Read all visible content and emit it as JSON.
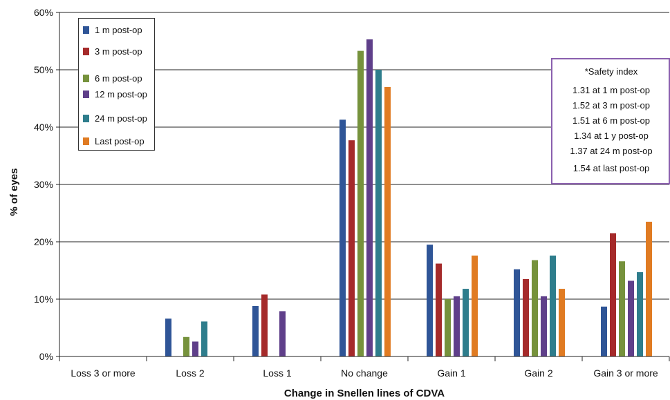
{
  "chart_data": {
    "type": "bar",
    "title": "",
    "xlabel": "Change in Snellen lines of CDVA",
    "ylabel": "% of eyes",
    "ylim": [
      0,
      60
    ],
    "yticks": [
      "0%",
      "10%",
      "20%",
      "30%",
      "40%",
      "50%",
      "60%"
    ],
    "grid": true,
    "legend_position": "top-left",
    "categories": [
      "Loss 3 or more",
      "Loss 2",
      "Loss 1",
      "No change",
      "Gain 1",
      "Gain 2",
      "Gain 3 or more"
    ],
    "series": [
      {
        "name": "1 m post-op",
        "color": "#2f5597",
        "values": [
          0,
          6.6,
          8.8,
          41.3,
          19.5,
          15.2,
          8.7
        ]
      },
      {
        "name": "3 m post-op",
        "color": "#a52a2a",
        "values": [
          0,
          0,
          10.8,
          37.7,
          16.2,
          13.5,
          21.5
        ]
      },
      {
        "name": "6 m post-op",
        "color": "#76923c",
        "values": [
          0,
          3.4,
          0,
          53.3,
          10.0,
          16.8,
          16.6
        ]
      },
      {
        "name": "12 m post-op",
        "color": "#5f3f8a",
        "values": [
          0,
          2.6,
          7.9,
          55.3,
          10.5,
          10.5,
          13.2
        ]
      },
      {
        "name": "24 m post-op",
        "color": "#2e7d8c",
        "values": [
          0,
          6.1,
          0,
          50.0,
          11.8,
          17.6,
          14.7
        ]
      },
      {
        "name": "Last post-op",
        "color": "#e07b22",
        "values": [
          0,
          0,
          0,
          47.0,
          17.6,
          11.8,
          23.5
        ]
      }
    ]
  },
  "safety_box": {
    "title": "*Safety index",
    "lines": [
      "1.31 at 1 m post-op",
      "1.52 at 3 m post-op",
      "1.51 at 6 m post-op",
      "1.34 at 1 y post-op",
      "1.37 at 24 m post-op",
      "1.54 at last post-op"
    ],
    "border_color": "#8a5fae"
  }
}
